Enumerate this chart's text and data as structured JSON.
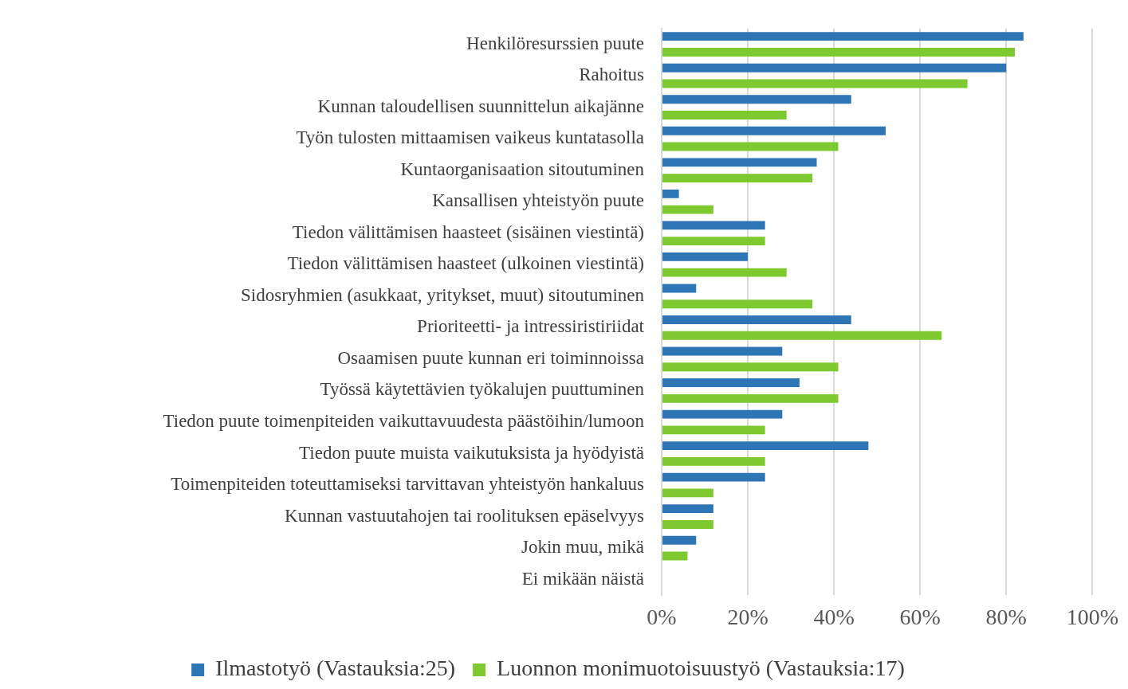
{
  "chart_data": {
    "type": "bar",
    "orientation": "horizontal",
    "categories": [
      "Henkilöresurssien puute",
      "Rahoitus",
      "Kunnan taloudellisen suunnittelun aikajänne",
      "Työn tulosten mittaamisen vaikeus kuntatasolla",
      "Kuntaorganisaation sitoutuminen",
      "Kansallisen yhteistyön puute",
      "Tiedon välittämisen haasteet (sisäinen viestintä)",
      "Tiedon välittämisen haasteet (ulkoinen viestintä)",
      "Sidosryhmien (asukkaat, yritykset, muut) sitoutuminen",
      "Prioriteetti- ja intressiristiriidat",
      "Osaamisen puute kunnan eri toiminnoissa",
      "Työssä käytettävien työkalujen puuttuminen",
      "Tiedon puute toimenpiteiden vaikuttavuudesta päästöihin/lumoon",
      "Tiedon puute muista vaikutuksista ja hyödyistä",
      "Toimenpiteiden toteuttamiseksi tarvittavan yhteistyön hankaluus",
      "Kunnan vastuutahojen tai roolituksen epäselvyys",
      "Jokin muu, mikä",
      "Ei mikään näistä"
    ],
    "series": [
      {
        "name": "Ilmastotyö (Vastauksia:25)",
        "color": "#2e75b6",
        "values": [
          84,
          80,
          44,
          52,
          36,
          4,
          24,
          20,
          8,
          44,
          28,
          32,
          28,
          48,
          24,
          12,
          8,
          0
        ]
      },
      {
        "name": "Luonnon monimuotoisuustyö (Vastauksia:17)",
        "color": "#7ec92f",
        "values": [
          82,
          71,
          29,
          41,
          35,
          12,
          24,
          29,
          35,
          65,
          41,
          41,
          24,
          24,
          12,
          12,
          6,
          0
        ]
      }
    ],
    "xlim": [
      0,
      100
    ],
    "xticks": [
      {
        "value": 0,
        "label": "0%"
      },
      {
        "value": 20,
        "label": "20%"
      },
      {
        "value": 40,
        "label": "40%"
      },
      {
        "value": 60,
        "label": "60%"
      },
      {
        "value": 80,
        "label": "80%"
      },
      {
        "value": 100,
        "label": "100%"
      }
    ],
    "grid": "x",
    "legend": "bottom"
  }
}
